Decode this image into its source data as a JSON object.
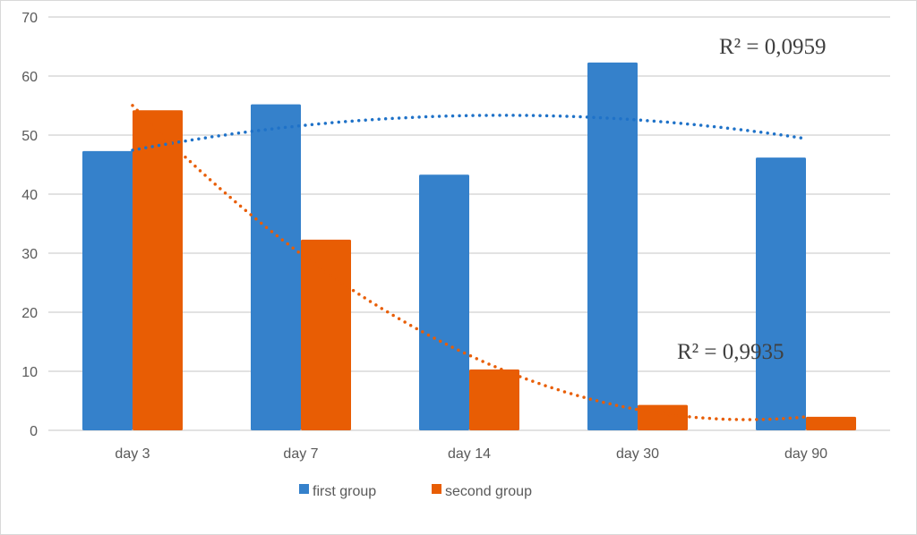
{
  "chart_data": {
    "type": "bar",
    "title": "",
    "xlabel": "",
    "ylabel": "",
    "categories": [
      "day 3",
      "day 7",
      "day 14",
      "day 30",
      "day 90"
    ],
    "series": [
      {
        "name": "first group",
        "values": [
          47.3,
          55.2,
          43.3,
          62.3,
          46.2
        ],
        "color": "#3581CB"
      },
      {
        "name": "second group",
        "values": [
          54.2,
          32.3,
          10.3,
          4.3,
          2.3
        ],
        "color": "#E85D04"
      }
    ],
    "trendlines": [
      {
        "series": "first group",
        "kind": "polynomial order 2",
        "style": "dotted",
        "r2_label": "R² = 0,0959"
      },
      {
        "series": "second group",
        "kind": "polynomial order 2",
        "style": "dotted",
        "r2_label": "R² = 0,9935"
      }
    ],
    "ylim": [
      0,
      70
    ],
    "yticks": [
      "0",
      "10",
      "20",
      "30",
      "40",
      "50",
      "60",
      "70"
    ],
    "grid": true,
    "legend_position": "bottom"
  }
}
